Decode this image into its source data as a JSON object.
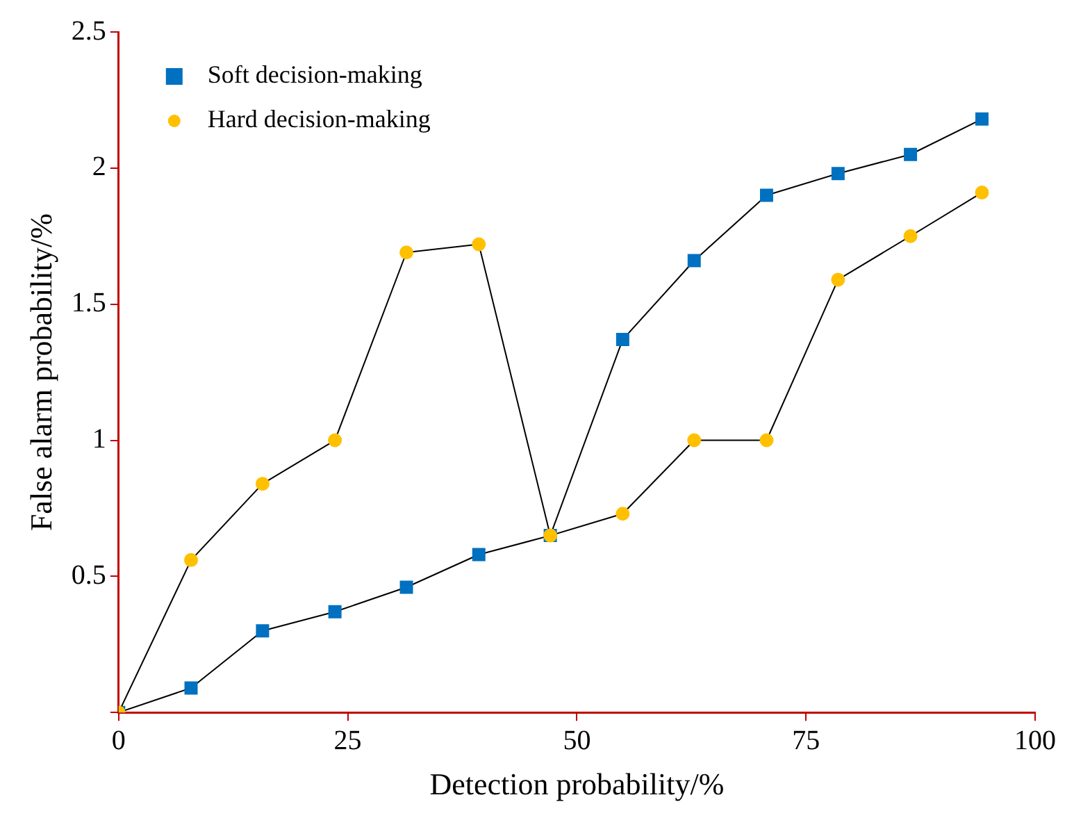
{
  "chart_data": {
    "type": "line",
    "xlabel": "Detection probability/%",
    "ylabel": "False alarm probability/%",
    "xlim": [
      0,
      100
    ],
    "xticks": [
      0,
      25,
      50,
      75,
      100
    ],
    "ylim": [
      0,
      2.5
    ],
    "yticks": [
      {
        "value": 0,
        "label": null
      },
      0.5,
      1,
      1.5,
      2,
      2.5
    ],
    "grid": false,
    "legend": "top left",
    "series": [
      {
        "name": "Soft decision-making",
        "color": "#0070c0",
        "marker": "square",
        "x": [
          0,
          7.9,
          15.7,
          23.6,
          31.4,
          39.3,
          47.1,
          55,
          62.8,
          70.7,
          78.5,
          86.4,
          94.2
        ],
        "values": [
          0,
          0.09,
          0.3,
          0.37,
          0.46,
          0.58,
          0.65,
          1.37,
          1.66,
          1.9,
          1.98,
          2.05,
          2.18
        ]
      },
      {
        "name": "Hard decision-making",
        "color": "#ffc000",
        "marker": "circle",
        "x": [
          0,
          7.9,
          15.7,
          23.6,
          31.4,
          39.3,
          47.1,
          55,
          62.8,
          70.7,
          78.5,
          86.4,
          94.2
        ],
        "values": [
          0,
          0.56,
          0.84,
          1,
          1.69,
          1.72,
          0.65,
          0.73,
          1,
          1,
          1.59,
          1.75,
          1.91
        ]
      }
    ]
  }
}
